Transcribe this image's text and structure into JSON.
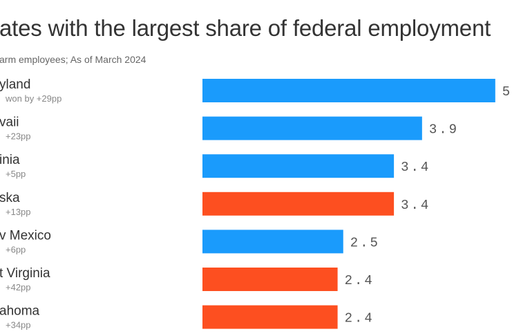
{
  "header": {
    "title": "ates with the largest share of federal employment",
    "subtitle": "arm employees; As of March 2024"
  },
  "chart_data": {
    "type": "bar",
    "orientation": "horizontal",
    "title": "ates with the largest share of federal employment",
    "subtitle": "arm employees; As of March 2024",
    "categories": [
      "yland",
      "vaii",
      "inia",
      "ska",
      "v Mexico",
      "t Virginia",
      "ahoma"
    ],
    "margin_labels": [
      "won by +29pp",
      "+23pp",
      "+5pp",
      "+13pp",
      "+6pp",
      "+42pp",
      "+34pp"
    ],
    "values": [
      5.2,
      3.9,
      3.4,
      3.4,
      2.5,
      2.4,
      2.4
    ],
    "value_labels": [
      "5",
      "3.9",
      "3.4",
      "3.4",
      "2.5",
      "2.4",
      "2.4"
    ],
    "party": [
      "blue",
      "blue",
      "blue",
      "red",
      "blue",
      "red",
      "red"
    ],
    "colors": {
      "blue": "#1a9bfc",
      "red": "#fd4f20"
    },
    "xlim": [
      0,
      5.2
    ],
    "grid": false,
    "legend": "none"
  }
}
